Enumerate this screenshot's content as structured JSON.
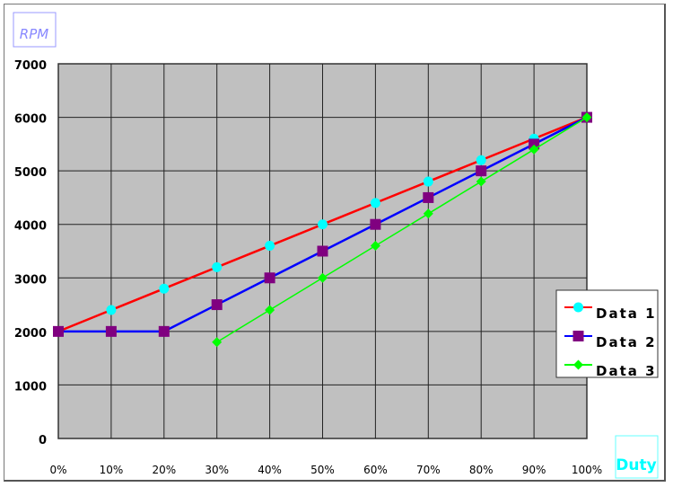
{
  "chart_data": {
    "type": "line",
    "ylabel": "RPM",
    "xlabel": "Duty",
    "x": [
      "0%",
      "10%",
      "20%",
      "30%",
      "40%",
      "50%",
      "60%",
      "70%",
      "80%",
      "90%",
      "100%"
    ],
    "ylim": [
      0,
      7000
    ],
    "yticks": [
      "0",
      "1000",
      "2000",
      "3000",
      "4000",
      "5000",
      "6000",
      "7000"
    ],
    "grid": true,
    "legend": "right",
    "series": [
      {
        "name": "Data 1",
        "values": [
          2000,
          2400,
          2800,
          3200,
          3600,
          4000,
          4400,
          4800,
          5200,
          5600,
          6000
        ],
        "line_color": "#ff0000",
        "marker": "circle",
        "marker_color": "#00ffff"
      },
      {
        "name": "Data 2",
        "values": [
          2000,
          2000,
          2000,
          2500,
          3000,
          3500,
          4000,
          4500,
          5000,
          5500,
          6000
        ],
        "line_color": "#0000ff",
        "marker": "square",
        "marker_color": "#800080"
      },
      {
        "name": "Data 3",
        "values": [
          null,
          null,
          null,
          1800,
          2400,
          3000,
          3600,
          4200,
          4800,
          5400,
          6000
        ],
        "line_color": "#00ff00",
        "marker": "diamond",
        "marker_color": "#00ff00"
      }
    ],
    "plot_bg": "#c0c0c0"
  }
}
